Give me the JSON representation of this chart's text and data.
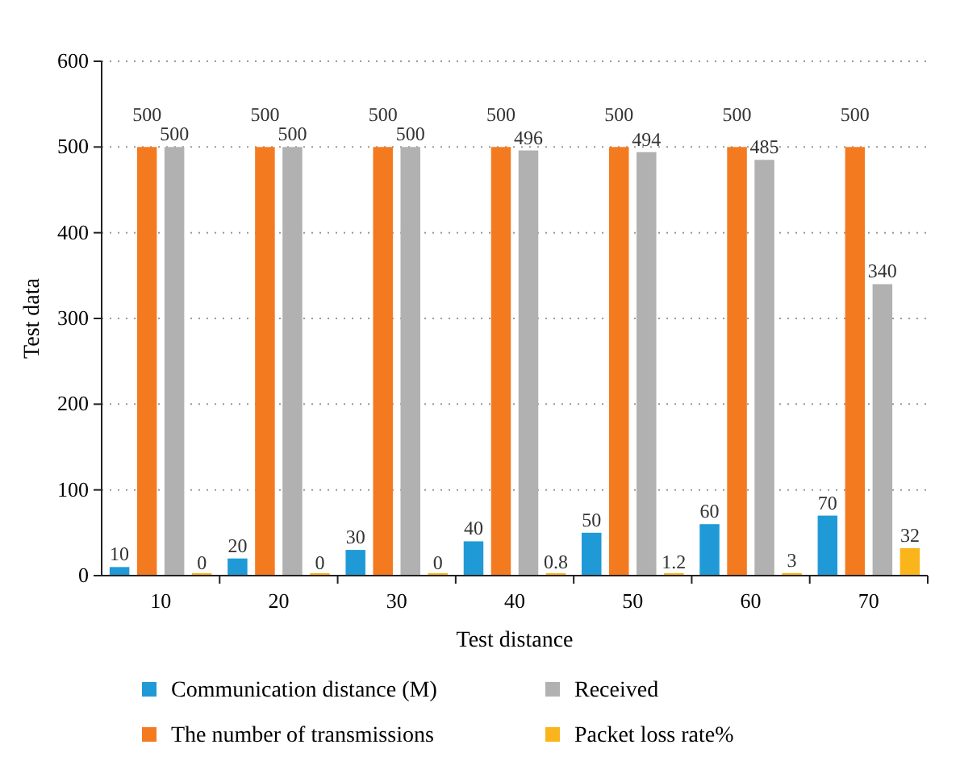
{
  "chart_data": {
    "type": "bar",
    "xlabel": "Test distance",
    "ylabel": "Test data",
    "categories": [
      "10",
      "20",
      "30",
      "40",
      "50",
      "60",
      "70"
    ],
    "ylim": [
      0,
      600
    ],
    "yticks": [
      0,
      100,
      200,
      300,
      400,
      500,
      600
    ],
    "grid": "y",
    "legend": "bottom",
    "data_labels": true,
    "series": [
      {
        "name": "Communication distance (M)",
        "color": "#1f9ad6",
        "values": [
          10,
          20,
          30,
          40,
          50,
          60,
          70
        ]
      },
      {
        "name": "The number of transmissions",
        "color": "#f47a20",
        "values": [
          500,
          500,
          500,
          500,
          500,
          500,
          500
        ]
      },
      {
        "name": "Received",
        "color": "#b1b1b1",
        "values": [
          500,
          500,
          500,
          496,
          494,
          485,
          340
        ]
      },
      {
        "name": "Packet loss rate%",
        "color": "#f9b51b",
        "values": [
          0,
          0,
          0,
          0.8,
          1.2,
          3,
          32
        ]
      }
    ]
  }
}
